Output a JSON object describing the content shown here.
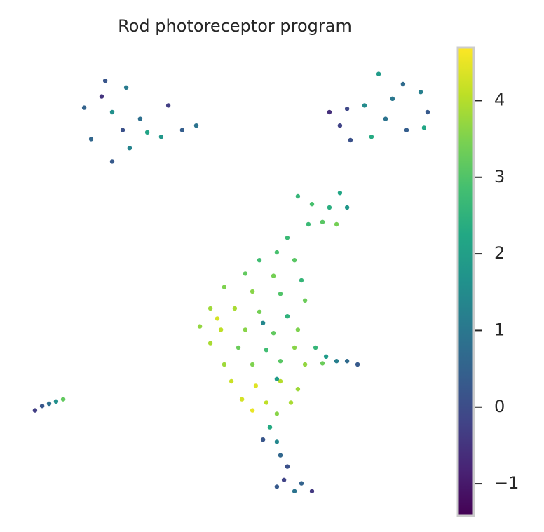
{
  "chart_data": {
    "type": "scatter",
    "title": "Rod photoreceptor program",
    "colormap": "viridis",
    "xlim": [
      0,
      20
    ],
    "ylim": [
      0,
      20
    ],
    "clim": [
      -1.42,
      4.69
    ],
    "cticks": [
      {
        "value": -1,
        "label": "−1"
      },
      0,
      1,
      2,
      3,
      4
    ],
    "x": [
      3.67,
      4.67,
      2.67,
      4.0,
      5.33,
      6.67,
      7.33,
      8.0,
      6.33,
      4.5,
      3.0,
      4.0,
      4.83,
      5.67,
      3.5,
      16.67,
      17.83,
      18.67,
      19.0,
      14.33,
      14.83,
      15.33,
      16.0,
      17.0,
      18.0,
      16.33,
      17.33,
      15.17,
      18.83,
      12.83,
      13.5,
      14.33,
      15.17,
      14.83,
      14.0,
      13.33,
      14.67,
      12.33,
      11.83,
      12.67,
      11.0,
      10.33,
      11.67,
      13.0,
      9.33,
      10.67,
      12.0,
      13.17,
      8.67,
      9.83,
      11.0,
      12.33,
      8.17,
      9.17,
      10.33,
      11.67,
      12.83,
      8.67,
      10.0,
      11.33,
      12.67,
      9.33,
      10.67,
      12.0,
      13.17,
      9.67,
      10.83,
      12.0,
      12.83,
      10.17,
      11.33,
      12.5,
      10.67,
      11.83,
      11.17,
      11.83,
      9.0,
      13.67,
      14.17,
      14.67,
      15.17,
      15.67,
      14.0,
      11.5,
      11.17,
      11.83,
      12.0,
      12.33,
      12.17,
      13.0,
      13.5,
      12.67,
      11.83,
      0.33,
      0.67,
      1.0,
      1.33,
      1.67
    ],
    "y": [
      18.9,
      18.6,
      17.7,
      17.5,
      17.2,
      17.8,
      16.7,
      16.9,
      16.4,
      16.7,
      16.3,
      15.3,
      15.9,
      16.6,
      18.2,
      19.2,
      18.75,
      18.4,
      17.5,
      17.5,
      16.9,
      16.25,
      17.8,
      17.2,
      16.7,
      16.4,
      18.1,
      17.65,
      16.8,
      13.75,
      13.4,
      13.25,
      13.25,
      13.9,
      12.6,
      12.5,
      12.5,
      11.9,
      11.25,
      10.9,
      10.9,
      10.3,
      10.2,
      10.0,
      9.7,
      9.5,
      9.4,
      9.1,
      8.75,
      8.75,
      8.6,
      8.4,
      7.95,
      7.8,
      7.8,
      7.65,
      7.8,
      7.2,
      7.0,
      6.9,
      7.0,
      6.25,
      6.25,
      6.4,
      6.25,
      5.5,
      5.3,
      5.5,
      5.15,
      4.7,
      4.55,
      4.55,
      4.2,
      4.05,
      8.1,
      5.6,
      8.3,
      7.0,
      6.6,
      6.4,
      6.4,
      6.25,
      6.3,
      3.45,
      2.9,
      2.8,
      2.2,
      1.7,
      1.1,
      0.95,
      0.6,
      0.6,
      0.8,
      4.2,
      4.4,
      4.5,
      4.6,
      4.7
    ],
    "values": [
      0.2,
      1.1,
      0.5,
      1.6,
      0.8,
      -0.3,
      0.4,
      0.9,
      1.8,
      0.1,
      0.6,
      0.3,
      1.3,
      2.1,
      -0.5,
      1.9,
      0.7,
      1.2,
      0.3,
      -0.6,
      -0.2,
      0.1,
      1.5,
      0.9,
      0.4,
      2.3,
      1.0,
      -0.1,
      2.2,
      2.6,
      2.9,
      2.4,
      1.8,
      2.2,
      3.1,
      2.7,
      3.4,
      2.7,
      2.9,
      3.1,
      2.8,
      3.2,
      3.4,
      2.6,
      3.5,
      3.6,
      3.0,
      3.3,
      3.8,
      3.9,
      3.4,
      2.5,
      3.7,
      4.1,
      3.6,
      3.2,
      3.5,
      3.9,
      3.3,
      2.8,
      3.6,
      3.8,
      3.5,
      3.1,
      3.7,
      4.2,
      4.4,
      4.0,
      3.8,
      4.3,
      4.1,
      3.9,
      4.5,
      3.6,
      1.4,
      1.9,
      4.3,
      2.6,
      1.9,
      1.2,
      0.7,
      0.3,
      3.3,
      2.3,
      0.2,
      1.4,
      0.6,
      0.1,
      -0.2,
      0.5,
      -0.4,
      0.9,
      0.3,
      -0.3,
      0.2,
      0.8,
      1.6,
      3.2
    ]
  }
}
